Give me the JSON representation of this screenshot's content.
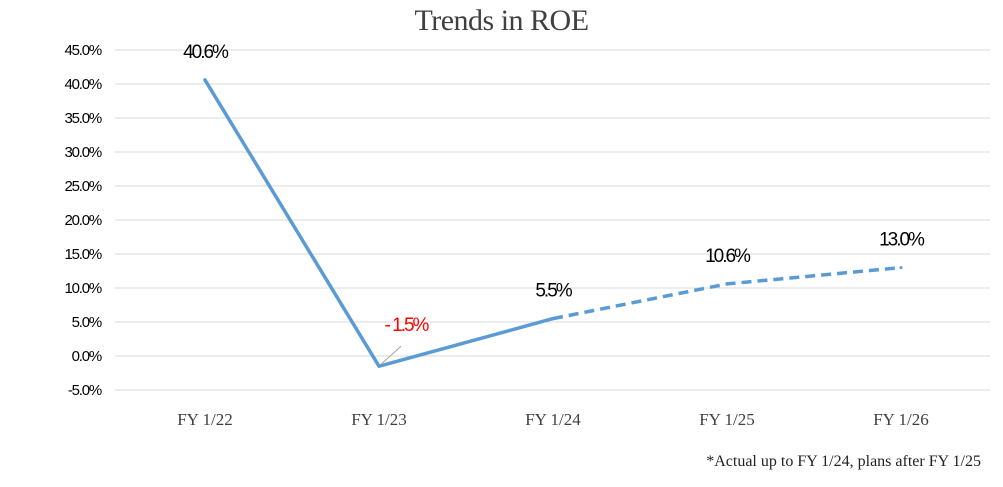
{
  "chart_data": {
    "type": "line",
    "title": "Trends in ROE",
    "categories": [
      "FY 1/22",
      "FY 1/23",
      "FY 1/24",
      "FY 1/25",
      "FY 1/26"
    ],
    "series": [
      {
        "values": [
          40.6,
          -1.5,
          5.5,
          10.6,
          13.0
        ],
        "data_labels": [
          "40.6%",
          "- 1.5%",
          "5.5%",
          "10.6%",
          "13.0%"
        ],
        "color": "#5b9bd5",
        "actual_through_index": 2
      }
    ],
    "y_ticks": [
      "45.0%",
      "40.0%",
      "35.0%",
      "30.0%",
      "25.0%",
      "20.0%",
      "15.0%",
      "10.0%",
      "5.0%",
      "0.0%",
      "-5.0%"
    ],
    "ylim": [
      -5,
      45
    ],
    "y_step": 5,
    "grid": true,
    "xlabel": "",
    "ylabel": "",
    "negative_label_color": "#ff0000",
    "label_color": "#000000",
    "gridline_color": "#d9d9d9",
    "footnote": "*Actual up to FY 1/24, plans after FY 1/25"
  }
}
